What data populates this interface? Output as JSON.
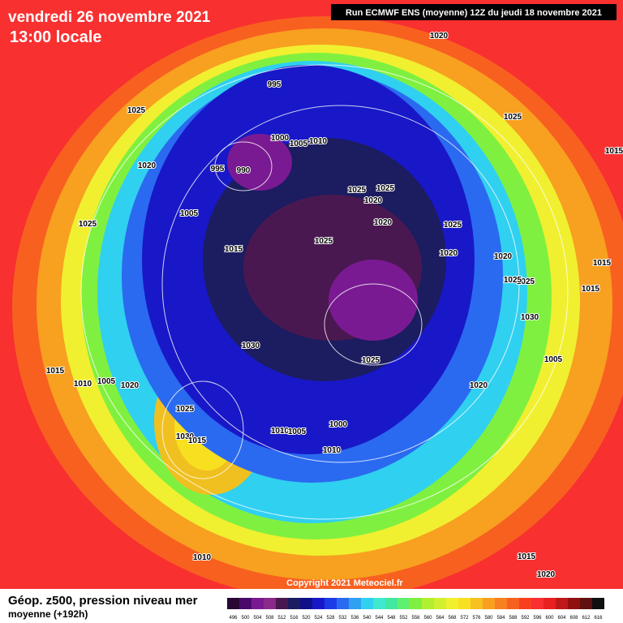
{
  "header": {
    "date": "vendredi 26 novembre 2021",
    "time": "13:00 locale",
    "run": "Run ECMWF ENS (moyenne) 12Z du jeudi 18 novembre 2021"
  },
  "contour_labels": [
    1025,
    995,
    1000,
    1005,
    1010,
    995,
    990,
    1020,
    1005,
    1025,
    1015,
    1025,
    1025,
    1020,
    1020,
    1025,
    1025,
    1020,
    1020,
    1025,
    1015,
    1015,
    1015,
    1025,
    1025,
    1030,
    1005,
    1025,
    1030,
    1020,
    1015,
    1010,
    1005,
    1020,
    1025,
    1030,
    1015,
    1010,
    1005,
    1000,
    1010,
    1010,
    1015,
    1020,
    1020
  ],
  "copyright": "Copyright 2021 Meteociel.fr",
  "footer": {
    "title": "Géop. z500, pression niveau mer",
    "subtitle": "moyenne  (+192h)"
  },
  "scale": {
    "values": [
      496,
      500,
      504,
      508,
      512,
      516,
      520,
      524,
      528,
      532,
      536,
      540,
      544,
      548,
      552,
      556,
      560,
      564,
      568,
      572,
      576,
      580,
      584,
      588,
      592,
      596,
      600,
      604,
      608,
      612,
      616
    ],
    "colors": [
      "#2a0833",
      "#4b0a6a",
      "#7a1a92",
      "#8a2a8a",
      "#4a1850",
      "#1c1c60",
      "#10108a",
      "#1818c8",
      "#1c3ce8",
      "#2a6af0",
      "#30a0f0",
      "#30d0f0",
      "#40e8d0",
      "#40e8a0",
      "#60f070",
      "#80f040",
      "#b0f030",
      "#d0f030",
      "#f0f030",
      "#f8e020",
      "#f8c020",
      "#f8a020",
      "#f88020",
      "#f86020",
      "#f84020",
      "#f83030",
      "#e82020",
      "#c01818",
      "#901010",
      "#601010",
      "#101010"
    ]
  }
}
